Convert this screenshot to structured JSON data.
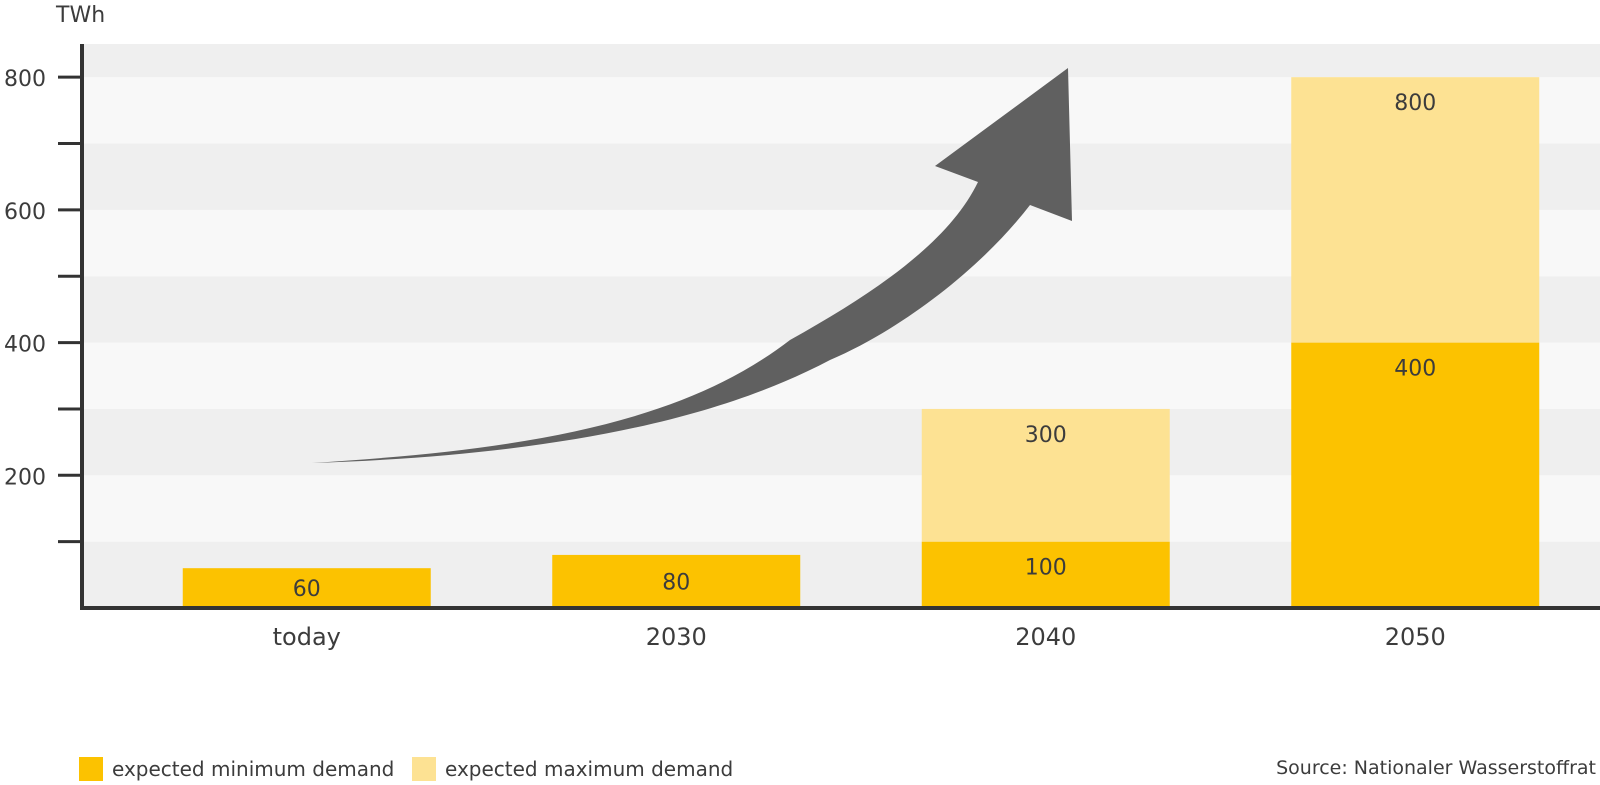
{
  "chart_data": {
    "type": "bar",
    "stacked": true,
    "ylabel": "TWh",
    "ylim": [
      0,
      850
    ],
    "yticks": [
      0,
      100,
      200,
      300,
      400,
      500,
      600,
      700,
      800
    ],
    "ytick_labels": [
      "",
      "",
      "200",
      "",
      "400",
      "",
      "600",
      "",
      "800"
    ],
    "categories": [
      "today",
      "2030",
      "2040",
      "2050"
    ],
    "series": [
      {
        "name": "expected minimum demand",
        "color": "#FCC200",
        "values": [
          60,
          80,
          100,
          400
        ],
        "labels": [
          "60",
          "80",
          "100",
          "400"
        ]
      },
      {
        "name": "expected maximum demand",
        "color": "#FDE293",
        "values": [
          0,
          0,
          200,
          400
        ],
        "labels": [
          "",
          "",
          "300",
          "800"
        ]
      }
    ],
    "annotation": "upward-trend-arrow",
    "legend_position": "bottom-left",
    "grid": "alternating horizontal bands",
    "source": "Source: Nationaler Wasserstoffrat"
  }
}
